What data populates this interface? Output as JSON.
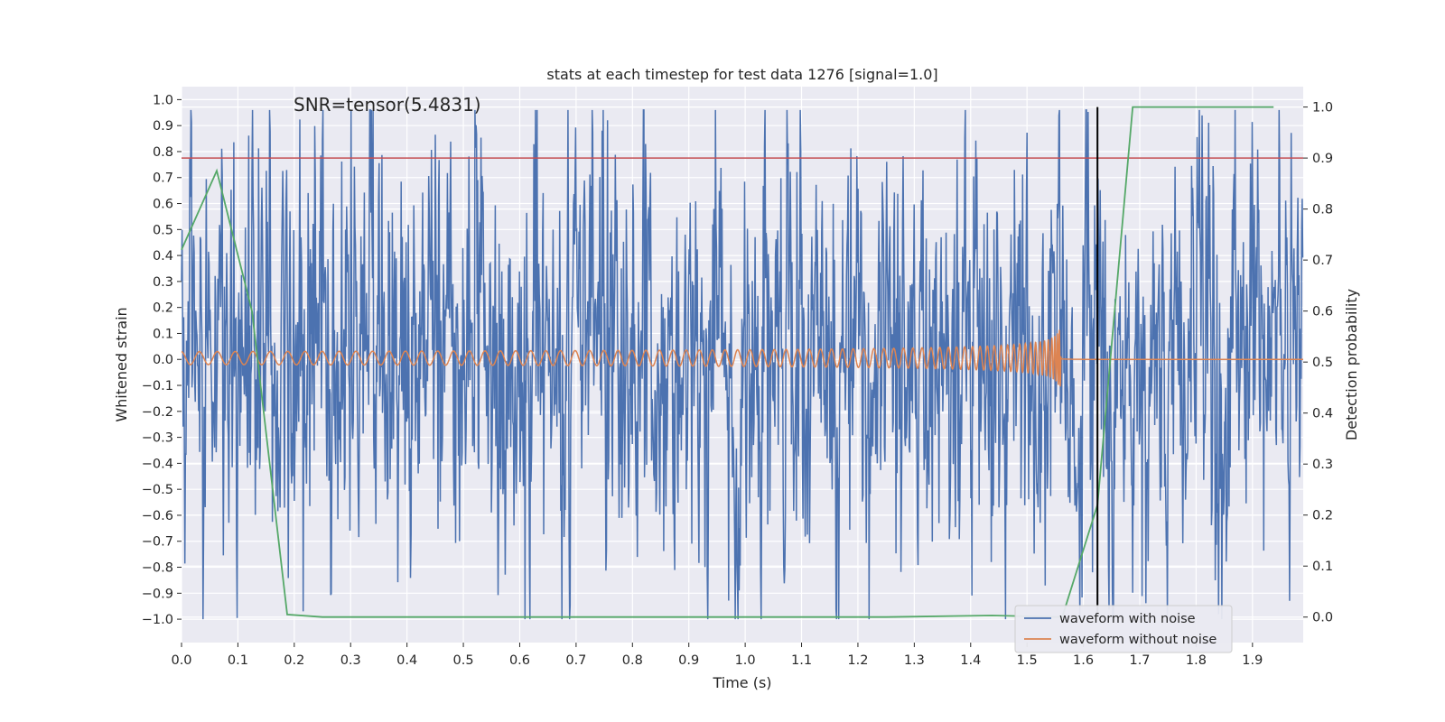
{
  "chart_data": {
    "type": "line",
    "title": "stats at each timestep for test data 1276 [signal=1.0]",
    "xlabel": "Time (s)",
    "ylabel": "Whitened strain",
    "y2label": "Detection probability",
    "annotation": "SNR=tensor(5.4831)",
    "xlim": [
      0,
      1.99
    ],
    "ylim": [
      -1.09,
      1.05
    ],
    "y2lim": [
      -0.05,
      1.04
    ],
    "x_ticks": [
      "0.0",
      "0.1",
      "0.2",
      "0.3",
      "0.4",
      "0.5",
      "0.6",
      "0.7",
      "0.8",
      "0.9",
      "1.0",
      "1.1",
      "1.2",
      "1.3",
      "1.4",
      "1.5",
      "1.6",
      "1.7",
      "1.8",
      "1.9"
    ],
    "y_ticks": [
      "1.0",
      "0.9",
      "0.8",
      "0.7",
      "0.6",
      "0.5",
      "0.4",
      "0.3",
      "0.2",
      "0.1",
      "0.0",
      "−0.1",
      "−0.2",
      "−0.3",
      "−0.4",
      "−0.5",
      "−0.6",
      "−0.7",
      "−0.8",
      "−0.9",
      "−1.0"
    ],
    "y2_ticks": [
      "0.0",
      "0.1",
      "0.2",
      "0.3",
      "0.4",
      "0.5",
      "0.6",
      "0.7",
      "0.8",
      "0.9",
      "1.0"
    ],
    "threshold": {
      "y2": 0.9,
      "color": "#c44e52"
    },
    "event_marker": {
      "x": 1.625,
      "y2_min": 0.0,
      "y2_max": 1.0,
      "color": "#000000"
    },
    "detection_probability": {
      "x": [
        0.0,
        0.0625,
        0.125,
        0.1875,
        0.25,
        0.3125,
        0.5,
        1.0,
        1.25,
        1.4375,
        1.5625,
        1.625,
        1.6875,
        1.75,
        1.8125,
        1.875,
        1.9375
      ],
      "y": [
        0.72,
        0.875,
        0.6,
        0.005,
        0.0,
        0.0,
        0.0,
        0.0,
        0.0,
        0.003,
        0.0,
        0.22,
        1.0,
        1.0,
        1.0,
        1.0,
        1.0
      ],
      "color": "#55a868"
    },
    "noisy_series": {
      "name": "waveform with noise",
      "color": "#4c72b0",
      "n_samples": 2048,
      "duration": 2.0,
      "note": "broadband noise, amplitude ~0.3 rms, peaks to ±1.0"
    },
    "clean_series": {
      "name": "waveform without noise",
      "color": "#dd8452",
      "chirp_end": 1.56,
      "duration": 2.0,
      "note": "chirp rising in frequency and amplitude until merger near 1.55 s, then flat ~0.0"
    },
    "legend": {
      "position": "lower-right",
      "entries": [
        {
          "label": "waveform with noise",
          "color": "#4c72b0"
        },
        {
          "label": "waveform without noise",
          "color": "#dd8452"
        }
      ]
    },
    "colors": {
      "plot_bg": "#eaeaf2",
      "grid": "#ffffff"
    }
  }
}
